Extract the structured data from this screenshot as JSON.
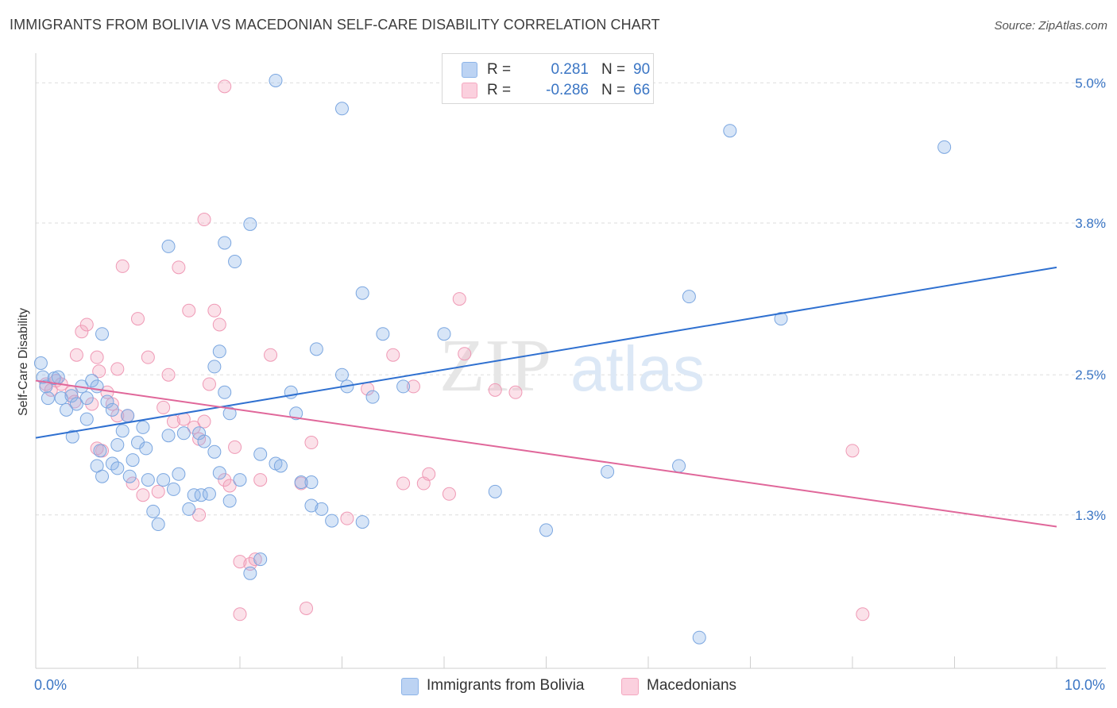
{
  "title": "IMMIGRANTS FROM BOLIVIA VS MACEDONIAN SELF-CARE DISABILITY CORRELATION CHART",
  "source": "Source: ZipAtlas.com",
  "colors": {
    "blue": "#8db4e8",
    "blue_line": "#2f70d0",
    "pink": "#f4a8c0",
    "pink_line": "#e0679a",
    "tick_label": "#3a75c4",
    "grid": "#dddddd"
  },
  "legend": {
    "rows": [
      {
        "r_label": "R =",
        "r_value": "0.281",
        "n_label": "N =",
        "n_value": "90"
      },
      {
        "r_label": "R =",
        "r_value": "-0.286",
        "n_label": "N =",
        "n_value": "66"
      }
    ]
  },
  "bottom_legend": {
    "items": [
      {
        "label": "Immigrants from Bolivia"
      },
      {
        "label": "Macedonians"
      }
    ]
  },
  "x_axis": {
    "min_label": "0.0%",
    "max_label": "10.0%"
  },
  "chart_data": {
    "type": "scatter",
    "title": "IMMIGRANTS FROM BOLIVIA VS MACEDONIAN SELF-CARE DISABILITY CORRELATION CHART",
    "xlabel": "",
    "ylabel": "Self-Care Disability",
    "xlim": [
      0,
      10
    ],
    "ylim": [
      0,
      5.2
    ],
    "y_ticks": [
      1.3,
      2.5,
      3.8,
      5.0
    ],
    "y_tick_labels": [
      "1.3%",
      "2.5%",
      "3.8%",
      "5.0%"
    ],
    "x_tick_labels": [
      "0.0%",
      "10.0%"
    ],
    "grid": true,
    "legend_position": "top-center",
    "series": [
      {
        "name": "Immigrants from Bolivia",
        "color": "#8db4e8",
        "r": "0.281",
        "n": "90",
        "trend": {
          "x": [
            0,
            10
          ],
          "y": [
            1.96,
            3.42
          ]
        },
        "points": [
          {
            "x": 0.05,
            "y": 2.6
          },
          {
            "x": 0.07,
            "y": 2.48
          },
          {
            "x": 0.1,
            "y": 2.4
          },
          {
            "x": 0.12,
            "y": 2.3
          },
          {
            "x": 0.18,
            "y": 2.47
          },
          {
            "x": 0.22,
            "y": 2.48
          },
          {
            "x": 0.25,
            "y": 2.3
          },
          {
            "x": 0.3,
            "y": 2.2
          },
          {
            "x": 0.35,
            "y": 2.32
          },
          {
            "x": 0.4,
            "y": 2.25
          },
          {
            "x": 0.45,
            "y": 2.4
          },
          {
            "x": 0.5,
            "y": 2.3
          },
          {
            "x": 0.55,
            "y": 2.45
          },
          {
            "x": 0.6,
            "y": 2.4
          },
          {
            "x": 0.65,
            "y": 2.85
          },
          {
            "x": 0.7,
            "y": 2.27
          },
          {
            "x": 0.75,
            "y": 2.2
          },
          {
            "x": 0.36,
            "y": 1.97
          },
          {
            "x": 0.6,
            "y": 1.72
          },
          {
            "x": 0.63,
            "y": 1.85
          },
          {
            "x": 0.65,
            "y": 1.63
          },
          {
            "x": 0.75,
            "y": 1.74
          },
          {
            "x": 0.8,
            "y": 1.9
          },
          {
            "x": 0.85,
            "y": 2.02
          },
          {
            "x": 0.9,
            "y": 2.15
          },
          {
            "x": 0.92,
            "y": 1.63
          },
          {
            "x": 0.95,
            "y": 1.77
          },
          {
            "x": 1.0,
            "y": 1.92
          },
          {
            "x": 1.05,
            "y": 2.05
          },
          {
            "x": 1.08,
            "y": 1.87
          },
          {
            "x": 1.1,
            "y": 1.6
          },
          {
            "x": 1.15,
            "y": 1.33
          },
          {
            "x": 1.2,
            "y": 1.22
          },
          {
            "x": 1.25,
            "y": 1.6
          },
          {
            "x": 1.3,
            "y": 1.98
          },
          {
            "x": 1.35,
            "y": 1.52
          },
          {
            "x": 1.4,
            "y": 1.65
          },
          {
            "x": 1.45,
            "y": 2.0
          },
          {
            "x": 1.5,
            "y": 1.35
          },
          {
            "x": 1.55,
            "y": 1.47
          },
          {
            "x": 1.6,
            "y": 2.0
          },
          {
            "x": 1.62,
            "y": 1.47
          },
          {
            "x": 1.65,
            "y": 1.93
          },
          {
            "x": 1.7,
            "y": 1.48
          },
          {
            "x": 1.75,
            "y": 1.84
          },
          {
            "x": 1.8,
            "y": 1.66
          },
          {
            "x": 1.9,
            "y": 1.42
          },
          {
            "x": 2.0,
            "y": 1.6
          },
          {
            "x": 2.1,
            "y": 0.8
          },
          {
            "x": 2.2,
            "y": 0.92
          },
          {
            "x": 1.8,
            "y": 2.7
          },
          {
            "x": 1.85,
            "y": 2.35
          },
          {
            "x": 1.75,
            "y": 2.57
          },
          {
            "x": 1.9,
            "y": 2.17
          },
          {
            "x": 2.2,
            "y": 1.82
          },
          {
            "x": 2.35,
            "y": 1.74
          },
          {
            "x": 2.4,
            "y": 1.72
          },
          {
            "x": 2.5,
            "y": 2.35
          },
          {
            "x": 2.55,
            "y": 2.17
          },
          {
            "x": 2.6,
            "y": 1.58
          },
          {
            "x": 2.7,
            "y": 1.58
          },
          {
            "x": 2.7,
            "y": 1.38
          },
          {
            "x": 2.75,
            "y": 2.72
          },
          {
            "x": 2.8,
            "y": 1.35
          },
          {
            "x": 2.9,
            "y": 1.25
          },
          {
            "x": 3.0,
            "y": 2.5
          },
          {
            "x": 3.05,
            "y": 2.4
          },
          {
            "x": 3.2,
            "y": 3.2
          },
          {
            "x": 3.2,
            "y": 1.24
          },
          {
            "x": 3.3,
            "y": 2.31
          },
          {
            "x": 3.4,
            "y": 2.85
          },
          {
            "x": 3.6,
            "y": 2.4
          },
          {
            "x": 4.0,
            "y": 2.85
          },
          {
            "x": 4.5,
            "y": 1.5
          },
          {
            "x": 5.0,
            "y": 1.17
          },
          {
            "x": 5.6,
            "y": 1.67
          },
          {
            "x": 6.3,
            "y": 1.72
          },
          {
            "x": 6.4,
            "y": 3.17
          },
          {
            "x": 7.3,
            "y": 2.98
          },
          {
            "x": 1.3,
            "y": 3.6
          },
          {
            "x": 1.85,
            "y": 3.63
          },
          {
            "x": 1.95,
            "y": 3.47
          },
          {
            "x": 2.1,
            "y": 3.79
          },
          {
            "x": 2.35,
            "y": 5.02
          },
          {
            "x": 3.0,
            "y": 4.78
          },
          {
            "x": 6.8,
            "y": 4.59
          },
          {
            "x": 8.9,
            "y": 4.45
          },
          {
            "x": 6.5,
            "y": 0.25
          },
          {
            "x": 0.5,
            "y": 2.12
          },
          {
            "x": 0.8,
            "y": 1.7
          }
        ]
      },
      {
        "name": "Macedonians",
        "color": "#f4a8c0",
        "r": "-0.286",
        "n": "66",
        "trend": {
          "x": [
            0,
            10
          ],
          "y": [
            2.45,
            1.2
          ]
        },
        "points": [
          {
            "x": 0.1,
            "y": 2.42
          },
          {
            "x": 0.15,
            "y": 2.37
          },
          {
            "x": 0.2,
            "y": 2.45
          },
          {
            "x": 0.25,
            "y": 2.42
          },
          {
            "x": 0.35,
            "y": 2.35
          },
          {
            "x": 0.38,
            "y": 2.27
          },
          {
            "x": 0.4,
            "y": 2.67
          },
          {
            "x": 0.45,
            "y": 2.87
          },
          {
            "x": 0.5,
            "y": 2.93
          },
          {
            "x": 0.55,
            "y": 2.25
          },
          {
            "x": 0.6,
            "y": 2.65
          },
          {
            "x": 0.62,
            "y": 2.53
          },
          {
            "x": 0.65,
            "y": 1.85
          },
          {
            "x": 0.7,
            "y": 2.35
          },
          {
            "x": 0.75,
            "y": 2.25
          },
          {
            "x": 0.8,
            "y": 2.55
          },
          {
            "x": 0.85,
            "y": 3.43
          },
          {
            "x": 0.9,
            "y": 2.15
          },
          {
            "x": 0.95,
            "y": 1.57
          },
          {
            "x": 1.0,
            "y": 2.98
          },
          {
            "x": 1.05,
            "y": 1.47
          },
          {
            "x": 1.1,
            "y": 2.65
          },
          {
            "x": 1.2,
            "y": 1.5
          },
          {
            "x": 1.25,
            "y": 2.22
          },
          {
            "x": 1.3,
            "y": 2.5
          },
          {
            "x": 1.35,
            "y": 2.1
          },
          {
            "x": 1.4,
            "y": 3.42
          },
          {
            "x": 1.5,
            "y": 3.05
          },
          {
            "x": 1.55,
            "y": 2.05
          },
          {
            "x": 1.6,
            "y": 1.95
          },
          {
            "x": 1.65,
            "y": 2.1
          },
          {
            "x": 1.7,
            "y": 2.42
          },
          {
            "x": 1.75,
            "y": 3.05
          },
          {
            "x": 1.8,
            "y": 2.93
          },
          {
            "x": 1.85,
            "y": 1.6
          },
          {
            "x": 1.9,
            "y": 1.55
          },
          {
            "x": 1.95,
            "y": 1.88
          },
          {
            "x": 2.0,
            "y": 0.9
          },
          {
            "x": 2.1,
            "y": 0.88
          },
          {
            "x": 2.15,
            "y": 0.92
          },
          {
            "x": 2.0,
            "y": 0.45
          },
          {
            "x": 2.2,
            "y": 1.6
          },
          {
            "x": 2.3,
            "y": 2.67
          },
          {
            "x": 2.6,
            "y": 1.57
          },
          {
            "x": 2.65,
            "y": 0.5
          },
          {
            "x": 2.7,
            "y": 1.92
          },
          {
            "x": 3.05,
            "y": 1.27
          },
          {
            "x": 3.25,
            "y": 2.38
          },
          {
            "x": 3.5,
            "y": 2.67
          },
          {
            "x": 3.6,
            "y": 1.57
          },
          {
            "x": 3.7,
            "y": 2.4
          },
          {
            "x": 3.8,
            "y": 1.57
          },
          {
            "x": 3.85,
            "y": 1.65
          },
          {
            "x": 4.05,
            "y": 1.48
          },
          {
            "x": 4.15,
            "y": 3.15
          },
          {
            "x": 4.2,
            "y": 2.68
          },
          {
            "x": 4.5,
            "y": 2.37
          },
          {
            "x": 4.7,
            "y": 2.35
          },
          {
            "x": 8.0,
            "y": 1.85
          },
          {
            "x": 8.1,
            "y": 0.45
          },
          {
            "x": 1.85,
            "y": 4.97
          },
          {
            "x": 1.65,
            "y": 3.83
          },
          {
            "x": 1.45,
            "y": 2.12
          },
          {
            "x": 1.6,
            "y": 1.3
          },
          {
            "x": 0.8,
            "y": 2.15
          },
          {
            "x": 0.6,
            "y": 1.87
          }
        ]
      }
    ]
  }
}
